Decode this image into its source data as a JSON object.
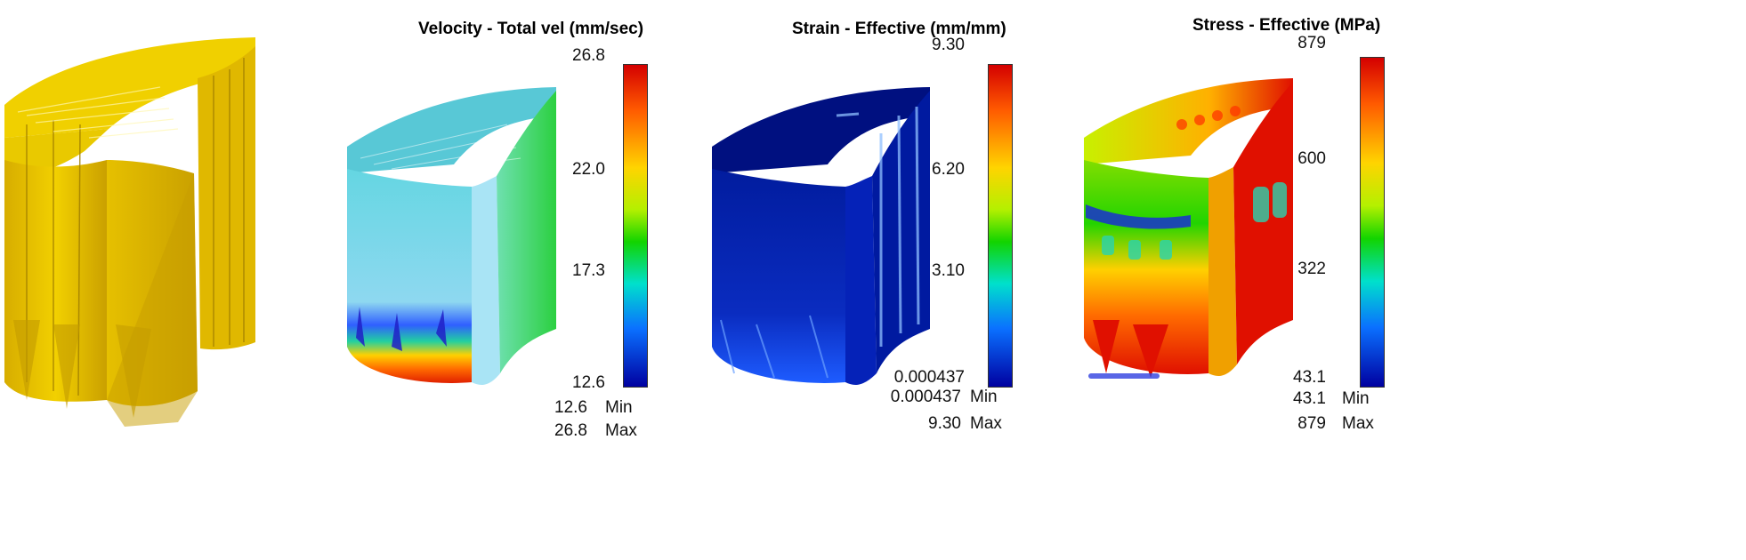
{
  "panels": [
    {
      "id": "geometry",
      "title": ""
    },
    {
      "id": "velocity",
      "title": "Velocity - Total vel (mm/sec)",
      "legend": {
        "ticks": [
          "26.8",
          "22.0",
          "17.3",
          "12.6"
        ],
        "min_value": "12.6",
        "min_label": "Min",
        "max_value": "26.8",
        "max_label": "Max"
      }
    },
    {
      "id": "strain",
      "title": "Strain - Effective (mm/mm)",
      "legend": {
        "ticks": [
          "9.30",
          "6.20",
          "3.10",
          "0.000437"
        ],
        "min_value": "0.000437",
        "min_label": "Min",
        "max_value": "9.30",
        "max_label": "Max"
      }
    },
    {
      "id": "stress",
      "title": "Stress - Effective (MPa)",
      "legend": {
        "ticks": [
          "879",
          "600",
          "322",
          "43.1"
        ],
        "min_value": "43.1",
        "min_label": "Min",
        "max_value": "879",
        "max_label": "Max"
      }
    }
  ],
  "colors": {
    "gold": "#e8c400",
    "gold_dark": "#b89500",
    "gold_light": "#f5dc40",
    "rainbow": [
      "#d40000",
      "#ff6a00",
      "#ffd000",
      "#c8f000",
      "#22d400",
      "#00e0d0",
      "#0077ff",
      "#0000a8"
    ]
  }
}
